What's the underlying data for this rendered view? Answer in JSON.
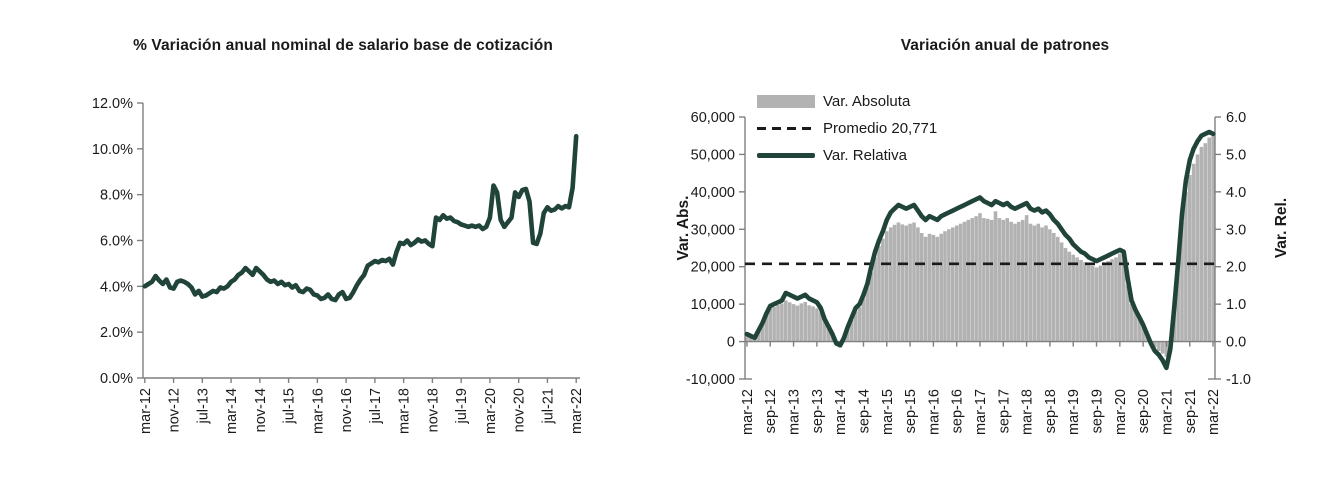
{
  "page": {
    "background": "#ffffff"
  },
  "colors": {
    "line_green": "#20443a",
    "bar_gray": "#b2b2b2",
    "dashed_black": "#1a1a1a",
    "axis_gray": "#7f7f7f",
    "text": "#1a1a1a"
  },
  "chart_data": [
    {
      "type": "line",
      "title": "% Variación anual nominal de salario base de cotización",
      "x_start": "mar-12",
      "x_end": "mar-22",
      "x_frequency": "monthly",
      "x_tick_step": 8,
      "x_tick_labels": [
        "mar-12",
        "nov-12",
        "jul-13",
        "mar-14",
        "nov-14",
        "jul-15",
        "mar-16",
        "nov-16",
        "jul-17",
        "mar-18",
        "nov-18",
        "jul-19",
        "mar-20",
        "nov-20",
        "jul-21",
        "mar-22"
      ],
      "ylim": [
        0,
        12
      ],
      "y_tick_values": [
        0,
        2,
        4,
        6,
        8,
        10,
        12
      ],
      "y_tick_labels": [
        "0.0%",
        "2.0%",
        "4.0%",
        "6.0%",
        "8.0%",
        "10.0%",
        "12.0%"
      ],
      "grid": false,
      "line_color": "#20443a",
      "values_percent": [
        4.0,
        4.1,
        4.2,
        4.45,
        4.25,
        4.1,
        4.3,
        3.95,
        3.9,
        4.2,
        4.25,
        4.2,
        4.1,
        3.95,
        3.65,
        3.8,
        3.55,
        3.6,
        3.7,
        3.8,
        3.75,
        3.95,
        3.9,
        4.0,
        4.2,
        4.3,
        4.5,
        4.6,
        4.8,
        4.65,
        4.5,
        4.8,
        4.65,
        4.5,
        4.3,
        4.2,
        4.25,
        4.1,
        4.2,
        4.05,
        4.1,
        3.95,
        4.05,
        3.8,
        3.75,
        3.9,
        3.85,
        3.65,
        3.6,
        3.45,
        3.5,
        3.65,
        3.45,
        3.4,
        3.65,
        3.75,
        3.45,
        3.5,
        3.75,
        4.05,
        4.3,
        4.5,
        4.9,
        5.0,
        5.1,
        5.05,
        5.15,
        5.1,
        5.2,
        4.95,
        5.5,
        5.9,
        5.85,
        6.0,
        5.8,
        5.9,
        6.05,
        5.95,
        6.0,
        5.85,
        5.75,
        7.0,
        6.9,
        7.1,
        6.95,
        7.0,
        6.85,
        6.8,
        6.7,
        6.65,
        6.6,
        6.65,
        6.6,
        6.65,
        6.5,
        6.6,
        7.0,
        8.4,
        8.1,
        6.9,
        6.6,
        6.8,
        7.0,
        8.1,
        7.9,
        8.2,
        8.25,
        7.7,
        5.9,
        5.85,
        6.3,
        7.2,
        7.45,
        7.3,
        7.35,
        7.5,
        7.4,
        7.5,
        7.45,
        8.3,
        10.55
      ]
    },
    {
      "type": "combo",
      "title": "Variación anual de patrones",
      "x_start": "mar-12",
      "x_end": "mar-22",
      "x_frequency": "monthly",
      "x_tick_step": 6,
      "x_tick_labels": [
        "mar-12",
        "sep-12",
        "mar-13",
        "sep-13",
        "mar-14",
        "sep-14",
        "mar-15",
        "sep-15",
        "mar-16",
        "sep-16",
        "mar-17",
        "sep-17",
        "mar-18",
        "sep-18",
        "mar-19",
        "sep-19",
        "mar-20",
        "sep-20",
        "mar-21",
        "sep-21",
        "mar-22"
      ],
      "left_axis": {
        "label": "Var. Abs.",
        "ylim": [
          -10000,
          60000
        ],
        "tick_values": [
          -10000,
          0,
          10000,
          20000,
          30000,
          40000,
          50000,
          60000
        ],
        "tick_labels": [
          "-10,000",
          "0",
          "10,000",
          "20,000",
          "30,000",
          "40,000",
          "50,000",
          "60,000"
        ]
      },
      "right_axis": {
        "label": "Var. Rel.",
        "ylim": [
          -1.0,
          6.0
        ],
        "tick_values": [
          -1,
          0,
          1,
          2,
          3,
          4,
          5,
          6
        ],
        "tick_labels": [
          "-1.0",
          "0.0",
          "1.0",
          "2.0",
          "3.0",
          "4.0",
          "5.0",
          "6.0"
        ]
      },
      "legend": [
        {
          "label": "Var. Absoluta",
          "swatch": "bar",
          "color": "#b2b2b2"
        },
        {
          "label": "Promedio 20,771",
          "swatch": "dash",
          "color": "#1a1a1a"
        },
        {
          "label": "Var. Relativa",
          "swatch": "line",
          "color": "#20443a"
        }
      ],
      "series": [
        {
          "name": "Var. Absoluta",
          "type": "bar",
          "axis": "left",
          "color": "#b2b2b2",
          "values": [
            2000,
            1500,
            1000,
            2800,
            4800,
            7200,
            8800,
            9300,
            9800,
            10200,
            11000,
            10500,
            10000,
            9600,
            10200,
            10600,
            9700,
            9400,
            8900,
            7800,
            5500,
            3500,
            1800,
            -300,
            -700,
            800,
            3500,
            5800,
            8000,
            9200,
            11500,
            14500,
            18500,
            22500,
            25500,
            27500,
            29500,
            30500,
            31200,
            31800,
            31300,
            31000,
            31500,
            31800,
            30500,
            29000,
            28000,
            28800,
            28500,
            28000,
            28800,
            29500,
            30000,
            30500,
            31000,
            31500,
            32000,
            32500,
            33000,
            33500,
            34300,
            33000,
            32800,
            32500,
            34800,
            33000,
            32500,
            33000,
            32000,
            31500,
            32000,
            32500,
            33800,
            31500,
            31000,
            31500,
            30500,
            31000,
            30000,
            29000,
            28000,
            26500,
            25000,
            24000,
            23200,
            22500,
            21800,
            21200,
            20800,
            20300,
            19800,
            20300,
            21000,
            21500,
            22000,
            22500,
            23500,
            23000,
            15000,
            10000,
            8000,
            6000,
            4000,
            1500,
            -500,
            -1500,
            -2500,
            -3200,
            -4000,
            -1500,
            8500,
            20000,
            32000,
            40000,
            44500,
            47500,
            50000,
            52000,
            53000,
            54500,
            55000
          ]
        },
        {
          "name": "Promedio",
          "type": "dashed-line",
          "axis": "left",
          "color": "#1a1a1a",
          "value": 20771
        },
        {
          "name": "Var. Relativa",
          "type": "line",
          "axis": "right",
          "color": "#20443a",
          "values": [
            0.2,
            0.15,
            0.1,
            0.3,
            0.5,
            0.75,
            0.95,
            1.0,
            1.05,
            1.1,
            1.3,
            1.25,
            1.2,
            1.15,
            1.2,
            1.25,
            1.15,
            1.1,
            1.05,
            0.9,
            0.6,
            0.4,
            0.2,
            -0.05,
            -0.1,
            0.1,
            0.4,
            0.65,
            0.9,
            1.0,
            1.25,
            1.55,
            2.0,
            2.4,
            2.7,
            2.95,
            3.25,
            3.45,
            3.55,
            3.65,
            3.6,
            3.55,
            3.6,
            3.65,
            3.5,
            3.35,
            3.25,
            3.35,
            3.3,
            3.25,
            3.35,
            3.4,
            3.45,
            3.5,
            3.55,
            3.6,
            3.65,
            3.7,
            3.75,
            3.8,
            3.85,
            3.75,
            3.7,
            3.65,
            3.75,
            3.7,
            3.65,
            3.7,
            3.6,
            3.55,
            3.6,
            3.65,
            3.7,
            3.55,
            3.5,
            3.55,
            3.45,
            3.5,
            3.4,
            3.25,
            3.15,
            3.0,
            2.85,
            2.75,
            2.6,
            2.5,
            2.4,
            2.35,
            2.25,
            2.2,
            2.15,
            2.2,
            2.25,
            2.3,
            2.35,
            2.4,
            2.45,
            2.4,
            1.7,
            1.1,
            0.85,
            0.65,
            0.45,
            0.2,
            -0.05,
            -0.25,
            -0.35,
            -0.5,
            -0.7,
            -0.2,
            0.9,
            2.1,
            3.4,
            4.3,
            4.85,
            5.15,
            5.35,
            5.5,
            5.55,
            5.6,
            5.55
          ]
        }
      ]
    }
  ]
}
